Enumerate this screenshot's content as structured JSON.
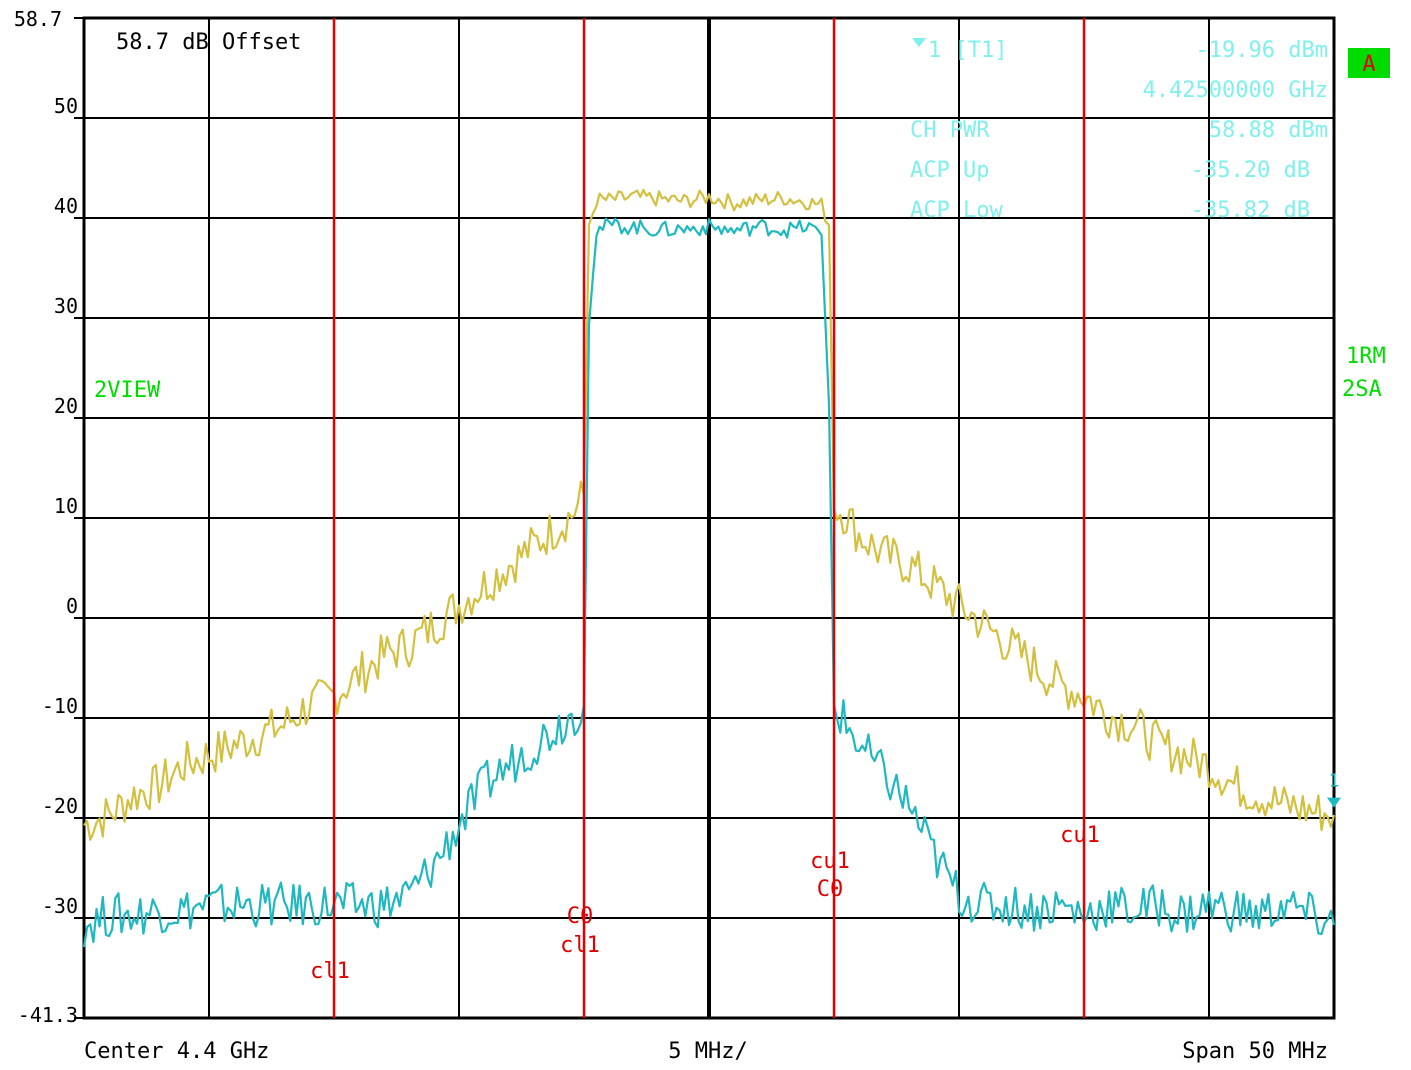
{
  "chart_data": {
    "type": "line",
    "ylim": [
      -41.3,
      58.7
    ],
    "y_top_label": "58.7",
    "y_bottom_label": "-41.3",
    "y_ticks": [
      50,
      40,
      30,
      20,
      10,
      0,
      -10,
      -20,
      -30
    ],
    "xlim": [
      -25,
      25
    ],
    "offset_text": "58.7 dB Offset",
    "footer": {
      "left": "Center 4.4 GHz",
      "center": "5 MHz/",
      "right": "Span 50 MHz"
    },
    "side_labels": {
      "view": "2VIEW",
      "trace1": "1RM",
      "trace2": "2SA",
      "badge": "A"
    },
    "marker_readout": {
      "marker_label": "1 [T1]",
      "marker_value": "-19.96 dBm",
      "marker_freq": "4.42500000 GHz",
      "rows": [
        {
          "label": "CH PWR",
          "value": "58.88 dBm"
        },
        {
          "label": "ACP Up",
          "value": "-35.20 dB"
        },
        {
          "label": "ACP Low",
          "value": "-35.82 dB"
        }
      ]
    },
    "marker": {
      "x": 25,
      "y": -19.96,
      "label": "1"
    },
    "channel_lines": [
      {
        "x": -15,
        "labels": [
          "cl1"
        ]
      },
      {
        "x": -5,
        "labels": [
          "C0",
          "cl1"
        ]
      },
      {
        "x": 5,
        "labels": [
          "cu1",
          "C0"
        ]
      },
      {
        "x": 15,
        "labels": [
          "cu1"
        ]
      }
    ],
    "series": [
      {
        "color": "#d4c040",
        "x": [
          -25,
          -24,
          -23,
          -22,
          -21,
          -20,
          -19,
          -18,
          -17,
          -16,
          -15,
          -14,
          -13,
          -12,
          -11,
          -10,
          -9,
          -8,
          -7,
          -6,
          -5.5,
          -5,
          -4.8,
          -4.5,
          -4,
          -3,
          -2,
          -1,
          0,
          1,
          2,
          3,
          4,
          4.5,
          4.8,
          5,
          5.5,
          6,
          7,
          8,
          9,
          10,
          11,
          12,
          13,
          14,
          15,
          16,
          17,
          18,
          19,
          20,
          21,
          22,
          23,
          24,
          25
        ],
        "values": [
          -22,
          -21,
          -19,
          -18,
          -16,
          -15,
          -14,
          -13,
          -12,
          -10,
          -9,
          -7,
          -5,
          -4,
          -2,
          0,
          2,
          4,
          6,
          8,
          9,
          11,
          38,
          40.5,
          40.5,
          40.8,
          40.6,
          40.4,
          40.8,
          40.2,
          40.5,
          40.7,
          40.3,
          40,
          38,
          10,
          9,
          7,
          5,
          4,
          2,
          0,
          -2,
          -4,
          -6,
          -8,
          -9,
          -11,
          -12,
          -14,
          -15,
          -16,
          -18,
          -19,
          -20,
          -20.5,
          -21
        ]
      },
      {
        "color": "#20b8c0",
        "x": [
          -25,
          -24,
          -23,
          -22,
          -21,
          -20,
          -19,
          -18,
          -17,
          -16,
          -15,
          -14,
          -13,
          -12,
          -11,
          -10,
          -9,
          -8,
          -7,
          -6,
          -5.5,
          -5,
          -4.8,
          -4.5,
          -4,
          -3,
          -2,
          -1,
          0,
          1,
          2,
          3,
          4,
          4.5,
          4.8,
          5,
          5.5,
          6,
          7,
          8,
          9,
          10,
          11,
          12,
          13,
          14,
          15,
          16,
          17,
          18,
          19,
          20,
          21,
          22,
          23,
          24,
          25
        ],
        "values": [
          -32,
          -31,
          -31,
          -30.5,
          -30.5,
          -30,
          -30,
          -30,
          -30,
          -30,
          -30,
          -30,
          -30,
          -29,
          -26,
          -22,
          -18,
          -16,
          -14,
          -12,
          -11,
          -10,
          28,
          37.5,
          38,
          37.8,
          37.5,
          37.6,
          37.8,
          37.4,
          37.9,
          37.5,
          37.8,
          37,
          20,
          -10,
          -12,
          -14,
          -17,
          -20,
          -25,
          -29,
          -30,
          -30,
          -30.5,
          -30,
          -31,
          -30,
          -30.5,
          -30,
          -31,
          -30,
          -30.5,
          -31,
          -30,
          -31,
          -32
        ]
      }
    ]
  },
  "colors": {
    "grid": "#000000",
    "channel": "#e00000",
    "readout": "#7ff0ec",
    "green": "#00dc00",
    "badge_bg": "#00dc00",
    "badge_text": "#e00000"
  }
}
